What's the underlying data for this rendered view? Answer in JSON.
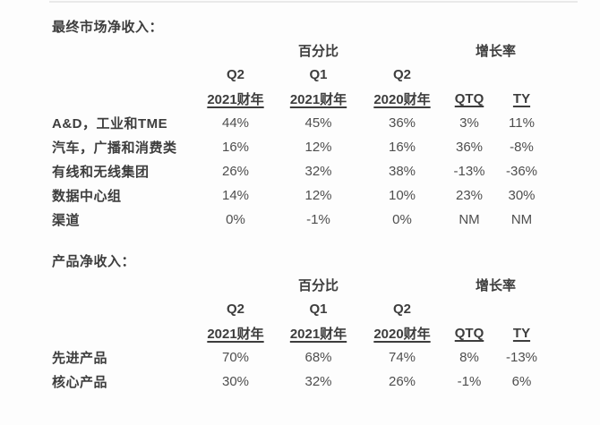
{
  "page": {
    "background": "#fdfdfd",
    "label_color": "#3d3d3d",
    "value_color": "#4e4e4e",
    "divider_color": "#e9e9e9"
  },
  "tables": [
    {
      "title": "最终市场净收入：",
      "percentage_group_label": "百分比",
      "growth_group_label": "增长率",
      "quarters": [
        "Q2",
        "Q1",
        "Q2"
      ],
      "periods": [
        "2021财年",
        "2021财年",
        "2020财年",
        "QTQ",
        "TY"
      ],
      "rows": [
        {
          "label": "A&D，工业和TME",
          "values": [
            "44%",
            "45%",
            "36%",
            "3%",
            "11%"
          ]
        },
        {
          "label": "汽车，广播和消费类",
          "values": [
            "16%",
            "12%",
            "16%",
            "36%",
            "-8%"
          ]
        },
        {
          "label": "有线和无线集团",
          "values": [
            "26%",
            "32%",
            "38%",
            "-13%",
            "-36%"
          ]
        },
        {
          "label": "数据中心组",
          "values": [
            "14%",
            "12%",
            "10%",
            "23%",
            "30%"
          ]
        },
        {
          "label": "渠道",
          "values": [
            "0%",
            "-1%",
            "0%",
            "NM",
            "NM"
          ]
        }
      ]
    },
    {
      "title": "产品净收入：",
      "percentage_group_label": "百分比",
      "growth_group_label": "增长率",
      "quarters": [
        "Q2",
        "Q1",
        "Q2"
      ],
      "periods": [
        "2021财年",
        "2021财年",
        "2020财年",
        "QTQ",
        "TY"
      ],
      "rows": [
        {
          "label": "先进产品",
          "values": [
            "70%",
            "68%",
            "74%",
            "8%",
            "-13%"
          ]
        },
        {
          "label": "核心产品",
          "values": [
            "30%",
            "32%",
            "26%",
            "-1%",
            "6%"
          ]
        }
      ]
    }
  ]
}
